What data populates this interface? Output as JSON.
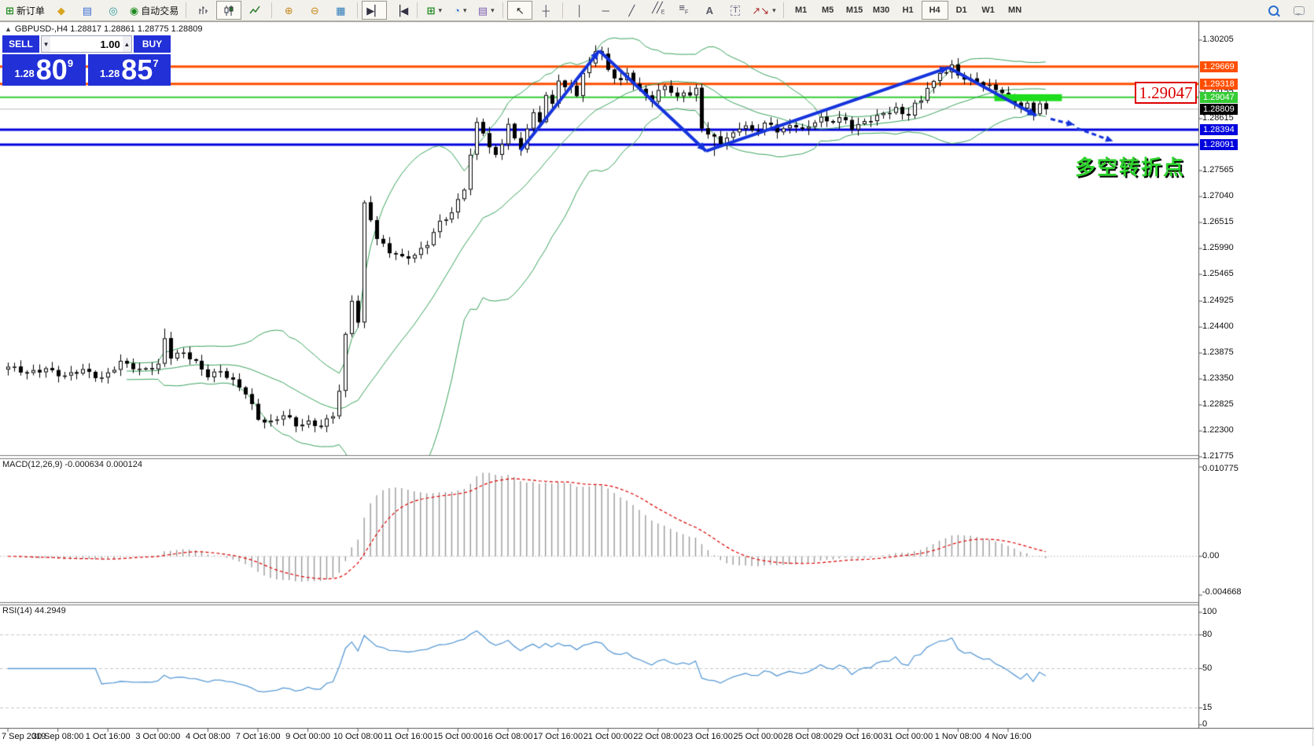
{
  "toolbar": {
    "new_order_label": "新订单",
    "autotrading_label": "自动交易",
    "timeframes": [
      "M1",
      "M5",
      "M15",
      "M30",
      "H1",
      "H4",
      "D1",
      "W1",
      "MN"
    ],
    "active_timeframe": "H4"
  },
  "symbol_header": {
    "collapse_icon": "▲",
    "text": "GBPUSD-,H4  1.28817 1.28861 1.28775 1.28809"
  },
  "one_click": {
    "sell_label": "SELL",
    "buy_label": "BUY",
    "volume": "1.00",
    "sell_price_small": "1.28",
    "sell_price_big": "80",
    "sell_price_sup": "9",
    "buy_price_small": "1.28",
    "buy_price_big": "85",
    "buy_price_sup": "7"
  },
  "chart_data": {
    "type": "candlestick",
    "symbol": "GBPUSD-",
    "timeframe": "H4",
    "title": "GBPUSD-,H4",
    "price_axis_ticks": [
      "1.30205",
      "1.29155",
      "1.28615",
      "1.27565",
      "1.27040",
      "1.26515",
      "1.25990",
      "1.25465",
      "1.24925",
      "1.24400",
      "1.23875",
      "1.23350",
      "1.22825",
      "1.22300",
      "1.21775"
    ],
    "time_axis_labels": [
      "7 Sep 2019",
      "30 Sep 08:00",
      "1 Oct 16:00",
      "3 Oct 00:00",
      "4 Oct 08:00",
      "7 Oct 16:00",
      "9 Oct 00:00",
      "10 Oct 08:00",
      "11 Oct 16:00",
      "15 Oct 00:00",
      "16 Oct 08:00",
      "17 Oct 16:00",
      "21 Oct 00:00",
      "22 Oct 08:00",
      "23 Oct 16:00",
      "25 Oct 00:00",
      "28 Oct 08:00",
      "29 Oct 16:00",
      "31 Oct 00:00",
      "1 Nov 08:00",
      "4 Nov 16:00"
    ],
    "levels": [
      {
        "value": "1.29669",
        "price": 1.29669,
        "color": "#ff4e00",
        "width": 3
      },
      {
        "value": "1.29318",
        "price": 1.29318,
        "color": "#ff4e00",
        "width": 3
      },
      {
        "value": "1.29047",
        "price": 1.29047,
        "color": "#33cc33",
        "width": 2
      },
      {
        "value": "1.28394",
        "price": 1.28394,
        "color": "#0000dd",
        "width": 3
      },
      {
        "value": "1.28091",
        "price": 1.28091,
        "color": "#0000dd",
        "width": 3
      }
    ],
    "current_price": {
      "value": "1.28809",
      "price": 1.28809,
      "line_color": "#bdbdbd",
      "badge_color": "#000000"
    },
    "bars_total": 167,
    "candle_waypoints": [
      [
        0,
        1.236
      ],
      [
        3,
        1.2345
      ],
      [
        6,
        1.2358
      ],
      [
        9,
        1.234
      ],
      [
        12,
        1.2352
      ],
      [
        15,
        1.2338
      ],
      [
        18,
        1.2368
      ],
      [
        21,
        1.2352
      ],
      [
        24,
        1.2365
      ],
      [
        25,
        1.2418
      ],
      [
        26,
        1.238
      ],
      [
        28,
        1.2386
      ],
      [
        30,
        1.2368
      ],
      [
        32,
        1.2344
      ],
      [
        34,
        1.2352
      ],
      [
        36,
        1.2328
      ],
      [
        38,
        1.2306
      ],
      [
        40,
        1.2256
      ],
      [
        42,
        1.2248
      ],
      [
        44,
        1.2262
      ],
      [
        46,
        1.224
      ],
      [
        48,
        1.2248
      ],
      [
        50,
        1.2242
      ],
      [
        52,
        1.2262
      ],
      [
        53,
        1.231
      ],
      [
        54,
        1.242
      ],
      [
        55,
        1.2495
      ],
      [
        56,
        1.245
      ],
      [
        57,
        1.269
      ],
      [
        58,
        1.2662
      ],
      [
        59,
        1.262
      ],
      [
        61,
        1.2592
      ],
      [
        63,
        1.2578
      ],
      [
        65,
        1.2586
      ],
      [
        67,
        1.2612
      ],
      [
        69,
        1.2652
      ],
      [
        71,
        1.2668
      ],
      [
        73,
        1.2722
      ],
      [
        74,
        1.2788
      ],
      [
        75,
        1.2855
      ],
      [
        76,
        1.2838
      ],
      [
        77,
        1.2802
      ],
      [
        78,
        1.2786
      ],
      [
        79,
        1.2812
      ],
      [
        80,
        1.2846
      ],
      [
        81,
        1.282
      ],
      [
        82,
        1.2804
      ],
      [
        83,
        1.284
      ],
      [
        84,
        1.2876
      ],
      [
        85,
        1.286
      ],
      [
        86,
        1.2906
      ],
      [
        87,
        1.289
      ],
      [
        88,
        1.294
      ],
      [
        89,
        1.292
      ],
      [
        90,
        1.2928
      ],
      [
        91,
        1.2912
      ],
      [
        92,
        1.2952
      ],
      [
        93,
        1.2976
      ],
      [
        94,
        1.3002
      ],
      [
        95,
        1.2988
      ],
      [
        96,
        1.296
      ],
      [
        97,
        1.2944
      ],
      [
        98,
        1.2934
      ],
      [
        99,
        1.2956
      ],
      [
        100,
        1.2936
      ],
      [
        101,
        1.292
      ],
      [
        102,
        1.2912
      ],
      [
        103,
        1.2898
      ],
      [
        104,
        1.2914
      ],
      [
        105,
        1.2928
      ],
      [
        106,
        1.2914
      ],
      [
        107,
        1.2902
      ],
      [
        108,
        1.2918
      ],
      [
        109,
        1.2912
      ],
      [
        110,
        1.2922
      ],
      [
        111,
        1.2846
      ],
      [
        112,
        1.283
      ],
      [
        113,
        1.282
      ],
      [
        114,
        1.2812
      ],
      [
        115,
        1.2822
      ],
      [
        116,
        1.283
      ],
      [
        117,
        1.2846
      ],
      [
        118,
        1.285
      ],
      [
        119,
        1.2836
      ],
      [
        120,
        1.2842
      ],
      [
        121,
        1.2852
      ],
      [
        122,
        1.2844
      ],
      [
        123,
        1.2836
      ],
      [
        124,
        1.284
      ],
      [
        125,
        1.2846
      ],
      [
        126,
        1.285
      ],
      [
        127,
        1.2842
      ],
      [
        128,
        1.2844
      ],
      [
        129,
        1.2858
      ],
      [
        130,
        1.2862
      ],
      [
        131,
        1.2852
      ],
      [
        132,
        1.2856
      ],
      [
        133,
        1.2862
      ],
      [
        134,
        1.2858
      ],
      [
        135,
        1.2846
      ],
      [
        136,
        1.285
      ],
      [
        137,
        1.2856
      ],
      [
        138,
        1.286
      ],
      [
        139,
        1.2864
      ],
      [
        140,
        1.287
      ],
      [
        141,
        1.2876
      ],
      [
        142,
        1.2882
      ],
      [
        143,
        1.2872
      ],
      [
        144,
        1.2874
      ],
      [
        145,
        1.2892
      ],
      [
        146,
        1.2898
      ],
      [
        147,
        1.2926
      ],
      [
        148,
        1.2932
      ],
      [
        149,
        1.2952
      ],
      [
        150,
        1.2958
      ],
      [
        151,
        1.2968
      ],
      [
        152,
        1.2952
      ],
      [
        153,
        1.2946
      ],
      [
        154,
        1.294
      ],
      [
        155,
        1.2936
      ],
      [
        156,
        1.293
      ],
      [
        157,
        1.2924
      ],
      [
        158,
        1.292
      ],
      [
        159,
        1.2916
      ],
      [
        160,
        1.2902
      ],
      [
        161,
        1.2898
      ],
      [
        162,
        1.2886
      ],
      [
        163,
        1.289
      ],
      [
        164,
        1.2872
      ],
      [
        165,
        1.2892
      ],
      [
        166,
        1.28809
      ]
    ],
    "wick_overrides": [
      {
        "bar": 25,
        "high": 1.2437
      },
      {
        "bar": 94,
        "high": 1.301
      },
      {
        "bar": 113,
        "low": 1.2786
      },
      {
        "bar": 151,
        "high": 1.298
      }
    ],
    "bollinger": {
      "period": 20,
      "deviation": 2,
      "color": "#3aa45c"
    },
    "zigzag": {
      "color": "#1433dc",
      "width": 4,
      "points": [
        [
          82,
          1.2797
        ],
        [
          94.6,
          1.2999
        ],
        [
          111.7,
          1.2796
        ],
        [
          150.5,
          1.2965
        ],
        [
          164.5,
          1.2868
        ]
      ]
    },
    "dashed_arrows": {
      "color": "#1433dc",
      "width": 3,
      "segments": [
        [
          [
            166.8,
            1.2861
          ],
          [
            170.6,
            1.2849
          ]
        ],
        [
          [
            171,
            1.2842
          ],
          [
            176.8,
            1.2816
          ]
        ]
      ]
    },
    "highlight_box": {
      "color": "#1ddd1d",
      "bar_start": 157.8,
      "bar_end": 168.6,
      "price_top": 1.2911,
      "price_bottom": 1.2897
    },
    "price_callout": "1.29047",
    "annotation_text": "多空转折点",
    "macd": {
      "label": "MACD(12,26,9)",
      "values": "-0.000634 0.000124",
      "params": {
        "fast": 12,
        "slow": 26,
        "signal": 9
      },
      "axis_ticks": [
        "0.010775",
        "0.00",
        "-0.004668"
      ],
      "axis_values": [
        0.010775,
        0,
        -0.004668
      ],
      "histogram_color": "#9a9a9a",
      "signal_color": "#dd0000"
    },
    "rsi": {
      "label": "RSI(14)",
      "value": "44.2949",
      "period": 14,
      "axis_ticks": [
        "100",
        "80",
        "50",
        "15",
        "0"
      ],
      "axis_values": [
        100,
        80,
        50,
        15,
        0
      ],
      "level_lines": [
        80,
        50,
        15
      ],
      "line_color": "#5b9bd5"
    }
  }
}
